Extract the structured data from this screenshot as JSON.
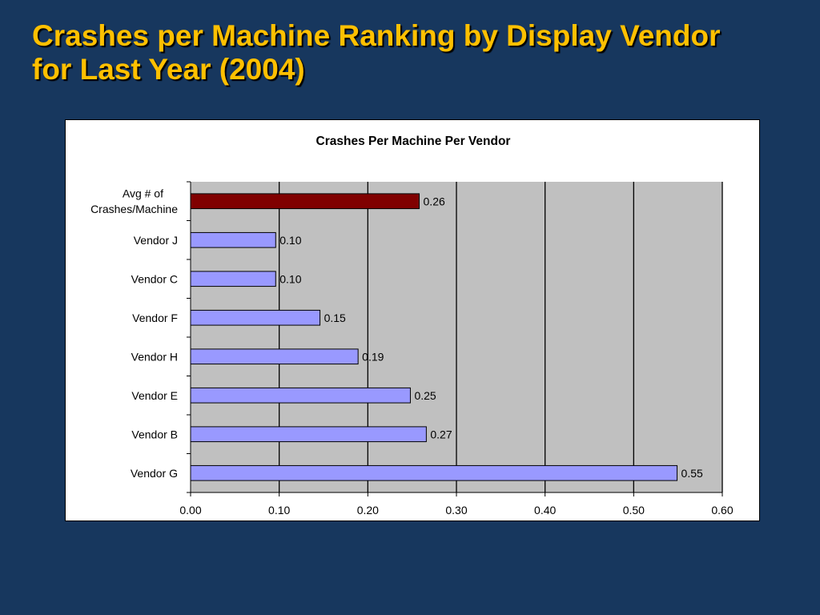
{
  "slide": {
    "title_lines": [
      "Crashes per Machine Ranking by Display Vendor",
      "for Last Year (2004)"
    ]
  },
  "chart_data": {
    "type": "bar",
    "orientation": "horizontal",
    "title": "Crashes Per Machine Per Vendor",
    "xlabel": "",
    "ylabel": "",
    "categories": [
      "Avg # of Crashes/Machine",
      "Vendor J",
      "Vendor C",
      "Vendor F",
      "Vendor H",
      "Vendor E",
      "Vendor B",
      "Vendor G"
    ],
    "category_display_lines": [
      [
        "Avg # of",
        "Crashes/Machine"
      ],
      [
        "Vendor J"
      ],
      [
        "Vendor C"
      ],
      [
        "Vendor F"
      ],
      [
        "Vendor H"
      ],
      [
        "Vendor E"
      ],
      [
        "Vendor B"
      ],
      [
        "Vendor G"
      ]
    ],
    "values": [
      0.258,
      0.096,
      0.096,
      0.146,
      0.189,
      0.248,
      0.266,
      0.549
    ],
    "value_labels": [
      "0.26",
      "0.10",
      "0.10",
      "0.15",
      "0.19",
      "0.25",
      "0.27",
      "0.55"
    ],
    "bar_colors": [
      "#800000",
      "#9999ff",
      "#9999ff",
      "#9999ff",
      "#9999ff",
      "#9999ff",
      "#9999ff",
      "#9999ff"
    ],
    "xlim": [
      0,
      0.6
    ],
    "xticks": [
      0,
      0.1,
      0.2,
      0.3,
      0.4,
      0.5,
      0.6
    ],
    "xtick_labels": [
      "0.00",
      "0.10",
      "0.20",
      "0.30",
      "0.40",
      "0.50",
      "0.60"
    ],
    "grid": "vertical",
    "plot_background": "#c0c0c0",
    "legend": "none"
  }
}
